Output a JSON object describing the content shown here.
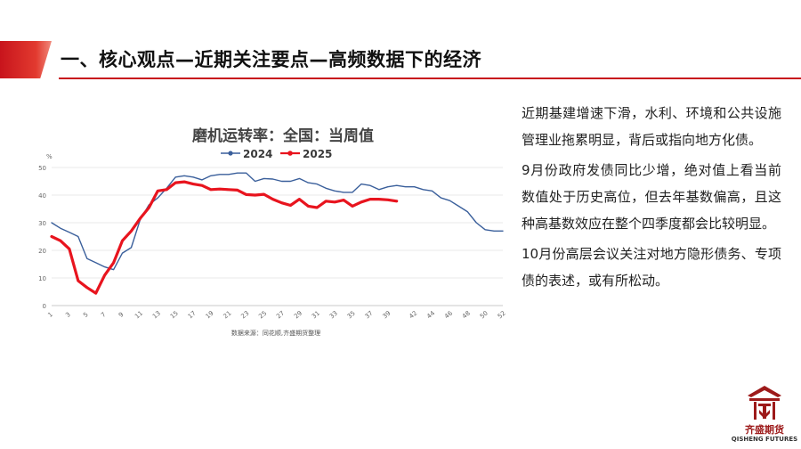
{
  "slide": {
    "title": "一、核心观点—近期关注要点—高频数据下的经济",
    "accent_color": "#c8141c"
  },
  "commentary": [
    "近期基建增速下滑，水利、环境和公共设施管理业拖累明显，背后或指向地方化债。",
    "9月份政府发债同比少增，绝对值上看当前数值处于历史高位，但去年基数偏高，且这种高基数效应在整个四季度都会比较明显。",
    "10月份高层会议关注对地方隐形债务、专项债的表述，或有所松动。"
  ],
  "logo": {
    "name": "齐盛期货",
    "sub": "QISHENG FUTURES",
    "icon": "qisheng-logo-icon",
    "color": "#9d1a1a"
  },
  "chart_data": {
    "type": "line",
    "title": "磨机运转率：全国：当周值",
    "ylabel": "%",
    "ylim": [
      0,
      50
    ],
    "yticks": [
      0,
      10,
      20,
      30,
      40,
      50
    ],
    "xlim": [
      1,
      52
    ],
    "xticks": [
      "1",
      "3",
      "5",
      "7",
      "9",
      "11",
      "13",
      "15",
      "17",
      "19",
      "21",
      "23",
      "25",
      "27",
      "29",
      "31",
      "33",
      "35",
      "37",
      "39",
      "42",
      "44",
      "46",
      "48",
      "50",
      "52"
    ],
    "legend_position": "top",
    "source": "数据来源：同花顺,齐盛期货整理",
    "series": [
      {
        "name": "2024",
        "color": "#3a5f9b",
        "width": 1.4,
        "x": [
          1,
          2,
          3,
          4,
          5,
          6,
          7,
          8,
          9,
          10,
          11,
          12,
          13,
          14,
          15,
          16,
          17,
          18,
          19,
          20,
          21,
          22,
          23,
          24,
          25,
          26,
          27,
          28,
          29,
          30,
          31,
          32,
          33,
          34,
          35,
          36,
          37,
          38,
          39,
          40,
          41,
          42,
          43,
          44,
          45,
          46,
          47,
          48,
          49,
          50,
          51,
          52
        ],
        "values": [
          30,
          28,
          26.5,
          25,
          17,
          15.5,
          14,
          13,
          19,
          21,
          31,
          36.5,
          39,
          42.5,
          46.5,
          47,
          46.5,
          45.5,
          47,
          47.5,
          47.5,
          48,
          48,
          45,
          46,
          45.8,
          45,
          45,
          46,
          44.5,
          44,
          42.5,
          41.5,
          41,
          41,
          44,
          43.5,
          42,
          43,
          43.5,
          43,
          43,
          42,
          41.5,
          39,
          38,
          36,
          34,
          30,
          27.5,
          27,
          27
        ]
      },
      {
        "name": "2025",
        "color": "#e8141e",
        "width": 3.2,
        "x": [
          1,
          2,
          3,
          4,
          5,
          6,
          7,
          8,
          9,
          10,
          11,
          12,
          13,
          14,
          15,
          16,
          17,
          18,
          19,
          20,
          21,
          22,
          23,
          24,
          25,
          26,
          27,
          28,
          29,
          30,
          31,
          32,
          33,
          34,
          35,
          36,
          37,
          38,
          39,
          40
        ],
        "values": [
          25,
          23.5,
          20.5,
          9,
          6.5,
          4.5,
          11,
          15.5,
          23.5,
          27,
          31.5,
          35.5,
          41.5,
          42,
          44.5,
          44.8,
          44,
          43.5,
          42,
          42.2,
          42,
          41.8,
          40.2,
          40,
          40.3,
          38.5,
          37.2,
          36.3,
          38.5,
          36,
          35.5,
          37.8,
          37.5,
          38.2,
          36,
          37.5,
          38.5,
          38.5,
          38.3,
          37.8
        ]
      }
    ]
  }
}
